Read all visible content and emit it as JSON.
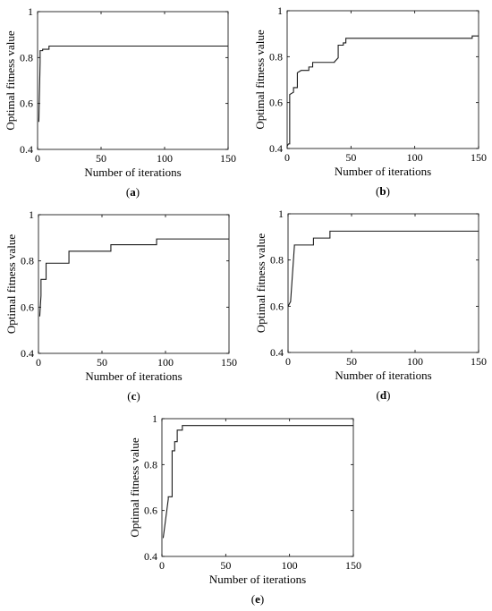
{
  "chart_data": [
    {
      "type": "line",
      "panel_label": "a",
      "caption_open": "(",
      "caption_close": ")",
      "xlabel": "Number of iterations",
      "ylabel": "Optimal fitness value",
      "xlim": [
        0,
        150
      ],
      "ylim": [
        0.4,
        1
      ],
      "xticks": [
        0,
        50,
        100,
        150
      ],
      "yticks": [
        0.4,
        0.6,
        0.8,
        1
      ],
      "ytick_labels": [
        "0.4",
        "0.6",
        "0.8",
        "1"
      ],
      "grid": false,
      "series": [
        {
          "x": [
            1,
            2,
            2,
            4,
            4,
            9,
            9,
            150
          ],
          "y": [
            0.52,
            0.78,
            0.83,
            0.83,
            0.836,
            0.836,
            0.85,
            0.85
          ]
        }
      ]
    },
    {
      "type": "line",
      "panel_label": "b",
      "caption_open": "(",
      "caption_close": ")",
      "xlabel": "Number of iterations",
      "ylabel": "Optimal fitness value",
      "xlim": [
        0,
        150
      ],
      "ylim": [
        0.4,
        1
      ],
      "xticks": [
        0,
        50,
        100,
        150
      ],
      "yticks": [
        0.4,
        0.6,
        0.8,
        1
      ],
      "ytick_labels": [
        "0.4",
        "0.6",
        "0.8",
        "1"
      ],
      "grid": false,
      "series": [
        {
          "x": [
            0,
            1,
            2,
            2,
            5,
            5,
            8,
            8,
            11,
            11,
            17,
            17,
            20,
            20,
            37,
            37,
            40,
            40,
            44,
            44,
            46,
            46,
            145,
            145,
            150
          ],
          "y": [
            0.41,
            0.42,
            0.42,
            0.635,
            0.645,
            0.665,
            0.665,
            0.73,
            0.74,
            0.74,
            0.74,
            0.755,
            0.755,
            0.775,
            0.775,
            0.777,
            0.795,
            0.85,
            0.85,
            0.86,
            0.86,
            0.88,
            0.88,
            0.89,
            0.89
          ]
        }
      ]
    },
    {
      "type": "line",
      "panel_label": "c",
      "caption_open": "(",
      "caption_close": ")",
      "xlabel": "Number of iterations",
      "ylabel": "Optimal fitness value",
      "xlim": [
        0,
        150
      ],
      "ylim": [
        0.4,
        1
      ],
      "xticks": [
        0,
        50,
        100,
        150
      ],
      "yticks": [
        0.4,
        0.6,
        0.8,
        1
      ],
      "ytick_labels": [
        "0.4",
        "0.6",
        "0.8",
        "1"
      ],
      "grid": false,
      "series": [
        {
          "x": [
            1,
            2,
            2,
            6,
            6,
            24,
            24,
            57,
            57,
            93,
            93,
            150
          ],
          "y": [
            0.56,
            0.65,
            0.72,
            0.72,
            0.79,
            0.79,
            0.842,
            0.842,
            0.87,
            0.87,
            0.895,
            0.895
          ]
        }
      ]
    },
    {
      "type": "line",
      "panel_label": "d",
      "caption_open": "(",
      "caption_close": ")",
      "xlabel": "Number of iterations",
      "ylabel": "Optimal fitness value",
      "xlim": [
        0,
        150
      ],
      "ylim": [
        0.4,
        1
      ],
      "xticks": [
        0,
        50,
        100,
        150
      ],
      "yticks": [
        0.4,
        0.6,
        0.8,
        1
      ],
      "ytick_labels": [
        "0.4",
        "0.6",
        "0.8",
        "1"
      ],
      "grid": false,
      "series": [
        {
          "x": [
            0,
            2,
            3,
            5,
            5,
            20,
            20,
            33,
            33,
            150
          ],
          "y": [
            0.6,
            0.62,
            0.7,
            0.86,
            0.865,
            0.865,
            0.895,
            0.895,
            0.925,
            0.925
          ]
        }
      ]
    },
    {
      "type": "line",
      "panel_label": "e",
      "caption_open": "(",
      "caption_close": ")",
      "xlabel": "Number of iterations",
      "ylabel": "Optimal fitness value",
      "xlim": [
        0,
        150
      ],
      "ylim": [
        0.4,
        1
      ],
      "xticks": [
        0,
        50,
        100,
        150
      ],
      "yticks": [
        0.4,
        0.6,
        0.8,
        1
      ],
      "ytick_labels": [
        "0.4",
        "0.6",
        "0.8",
        "1"
      ],
      "grid": false,
      "series": [
        {
          "x": [
            1,
            5,
            5,
            8,
            8,
            10,
            10,
            12,
            12,
            16,
            16,
            150
          ],
          "y": [
            0.48,
            0.65,
            0.66,
            0.66,
            0.86,
            0.86,
            0.9,
            0.9,
            0.95,
            0.95,
            0.97,
            0.97
          ]
        }
      ]
    }
  ]
}
